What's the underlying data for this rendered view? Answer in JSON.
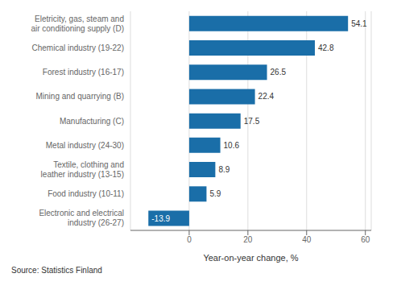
{
  "chart_data": {
    "type": "bar",
    "orientation": "horizontal",
    "categories": [
      "Electronic and electrical\nindustry (26-27)",
      "Food industry (10-11)",
      "Textile, clothing and\nleather industry (13-15)",
      "Metal industry (24-30)",
      "Manufacturing (C)",
      "Mining and quarrying (B)",
      "Forest industry (16-17)",
      "Chemical industry (19-22)",
      "Eletricity, gas, steam and\nair conditioning supply (D)"
    ],
    "values": [
      -13.9,
      5.9,
      8.9,
      10.6,
      17.5,
      22.4,
      26.5,
      42.8,
      54.1
    ],
    "color": "#1a6ea8",
    "xlabel": "Year-on-year change, %",
    "xlim": [
      -20,
      62
    ],
    "xticks": [
      0,
      20,
      40,
      60
    ],
    "grid": true,
    "data_labels": true,
    "annotations": [
      "Source: Statistics Finland"
    ]
  }
}
